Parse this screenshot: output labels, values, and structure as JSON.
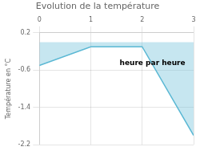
{
  "chart_data": {
    "type": "line",
    "title": "Evolution de la température",
    "y_label": "Température en °C",
    "x": [
      0,
      1,
      2,
      3
    ],
    "values": [
      -0.5,
      -0.1,
      -0.1,
      -2.0
    ],
    "color": "#5bb8d4",
    "xlim": [
      0,
      3
    ],
    "ylim": [
      -2.2,
      0.2
    ],
    "xticks": [
      0,
      1,
      2,
      3
    ],
    "yticks": [
      0.2,
      -0.6,
      -1.4,
      -2.2
    ],
    "grid": true,
    "annotations": [
      {
        "text": "heure par heure",
        "x": 2.2,
        "y": -0.45
      }
    ]
  }
}
